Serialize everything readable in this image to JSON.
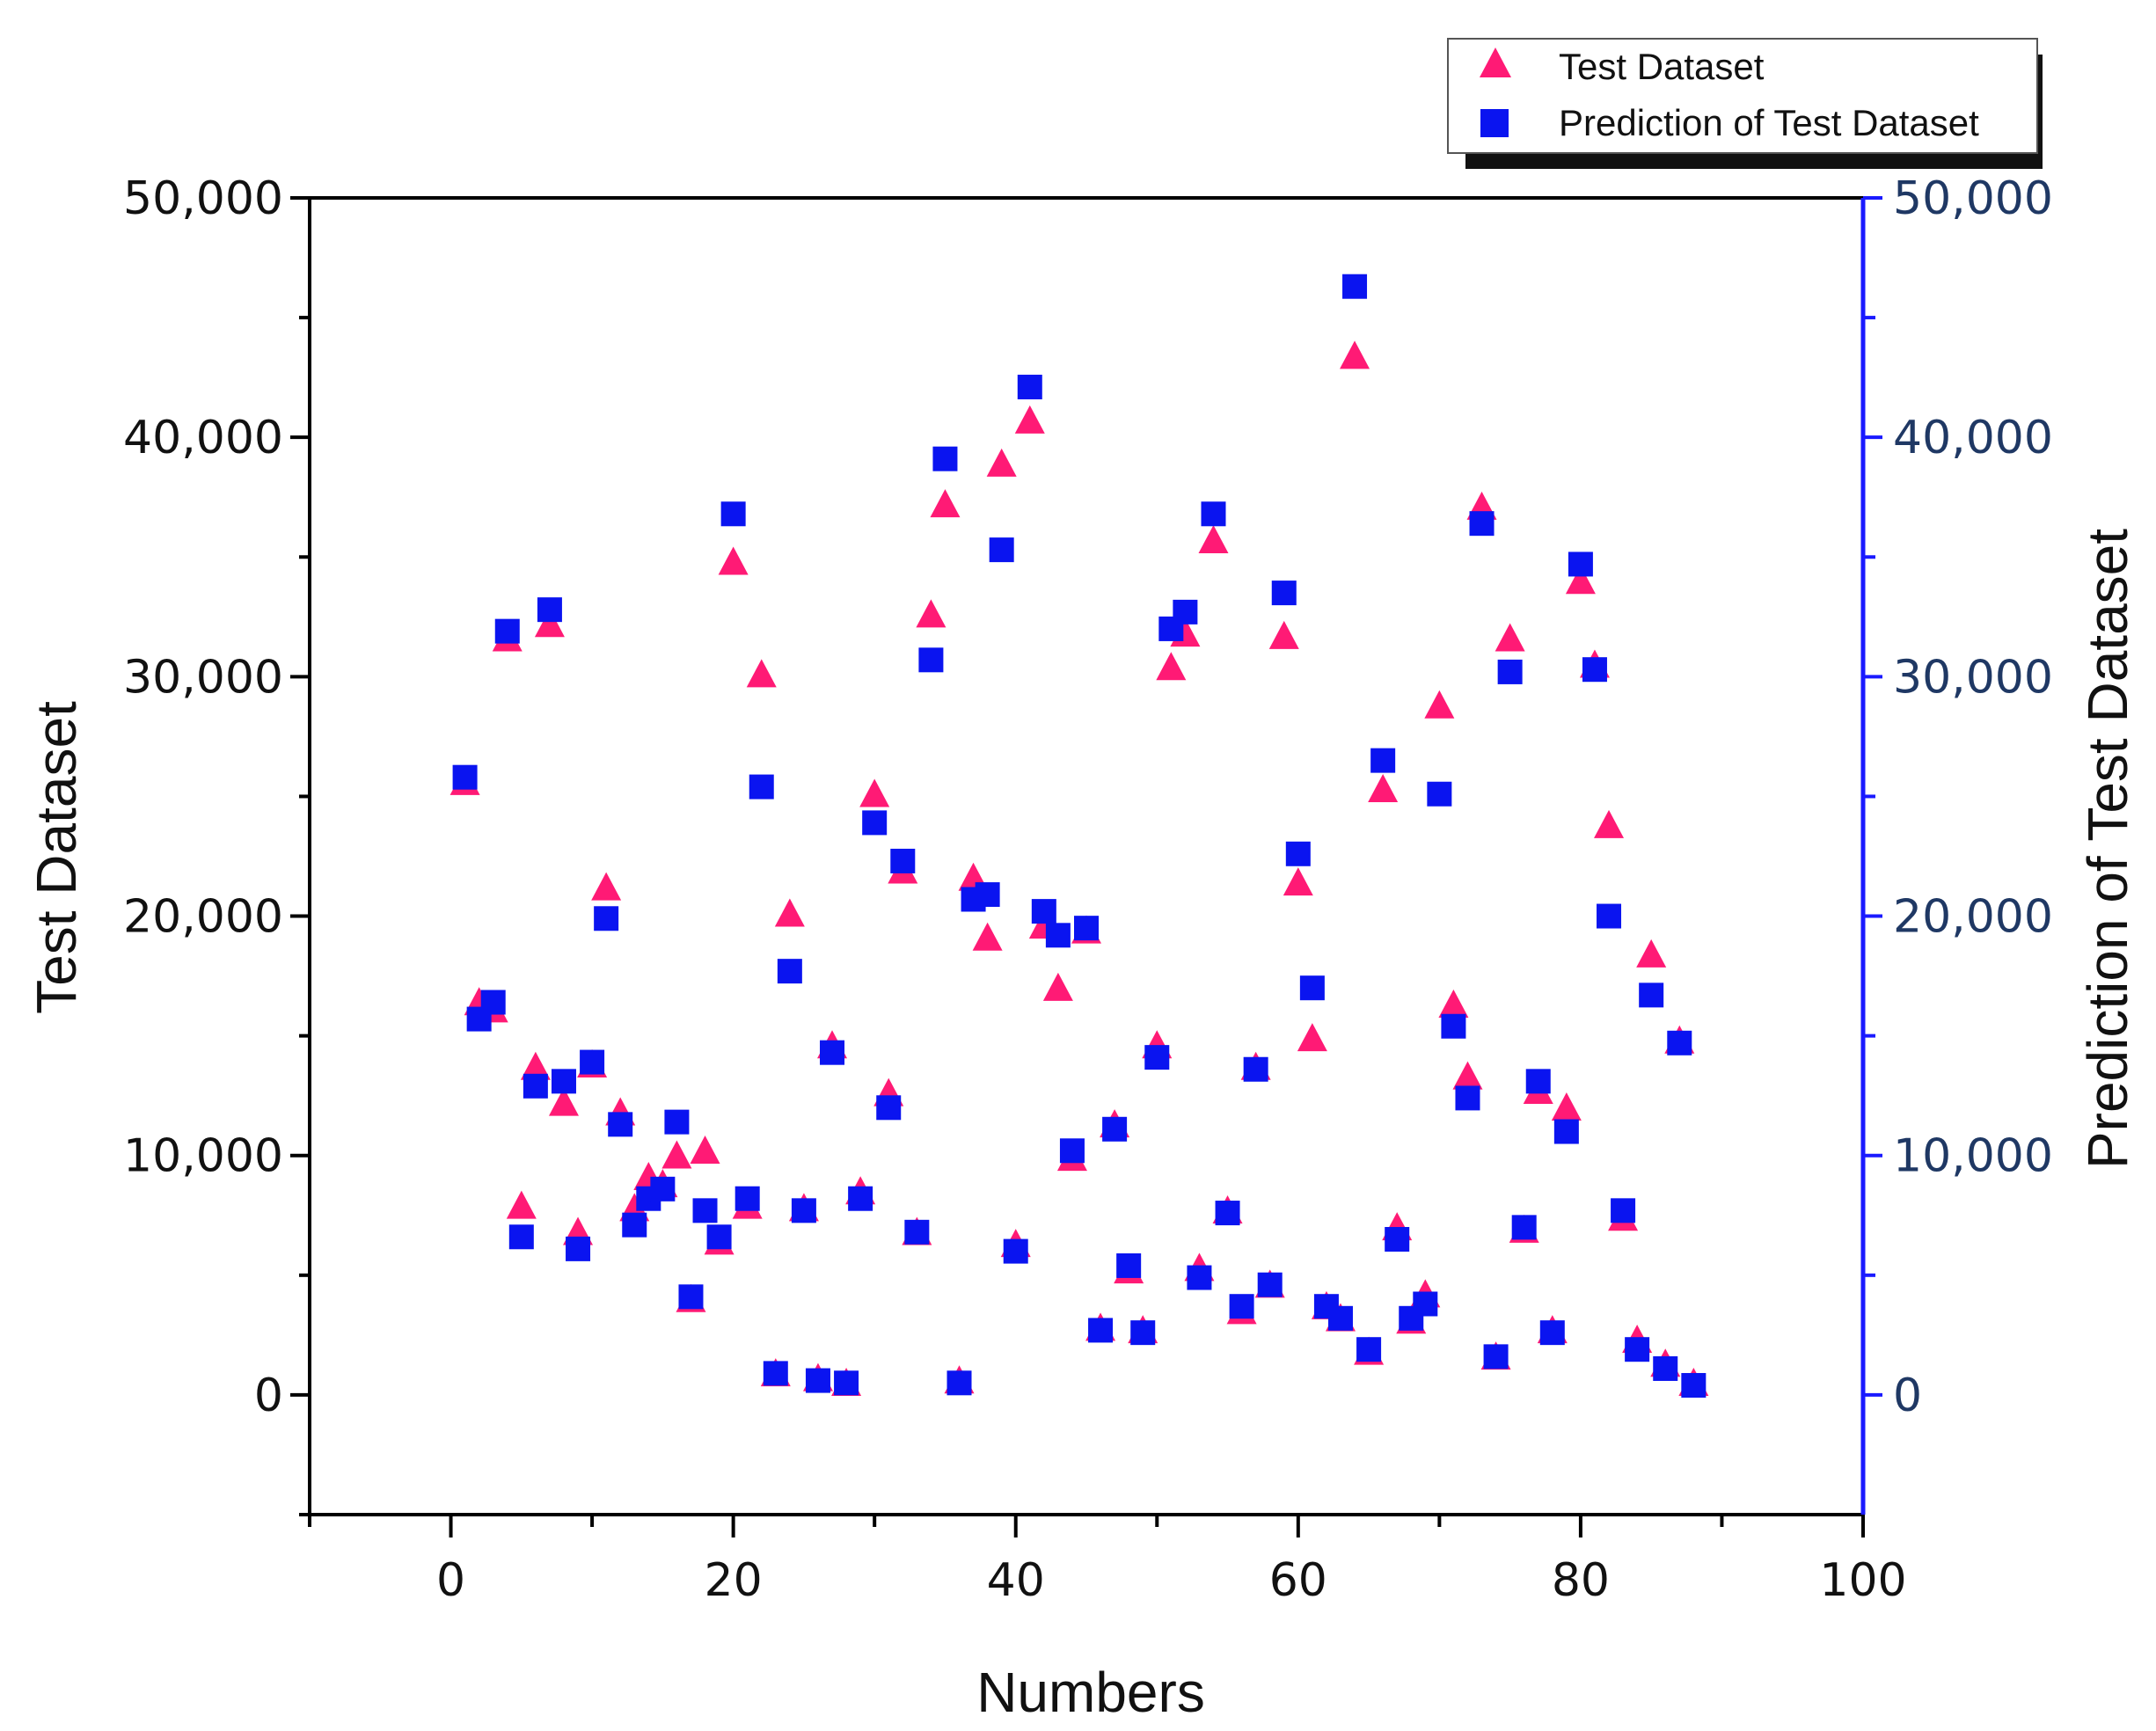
{
  "chart_data": {
    "type": "scatter",
    "title": "",
    "xlabel": "Numbers",
    "ylabel": "Test Dataset",
    "ylabel_right": "Prediction of Test Dataset",
    "xlim": [
      -10,
      100
    ],
    "ylim": [
      -5000,
      50000
    ],
    "ylim_right": [
      -5000,
      50000
    ],
    "x_ticks": [
      0,
      20,
      40,
      60,
      80,
      100
    ],
    "x_tick_labels": [
      "0",
      "20",
      "40",
      "60",
      "80",
      "100"
    ],
    "y_ticks": [
      0,
      10000,
      20000,
      30000,
      40000,
      50000
    ],
    "y_tick_labels": [
      "0",
      "10,000",
      "20,000",
      "30,000",
      "40,000",
      "50,000"
    ],
    "y_right_tick_labels": [
      "0",
      "10,000",
      "20,000",
      "30,000",
      "40,000",
      "50,000"
    ],
    "grid": false,
    "legend": "top-right",
    "colors": {
      "test": "#ff1a75",
      "prediction": "#0a14f0",
      "right_axis": "#1a1aff"
    },
    "series": [
      {
        "name": "Test Dataset",
        "marker": "triangle",
        "points": [
          [
            1,
            25500
          ],
          [
            2,
            16300
          ],
          [
            3,
            16000
          ],
          [
            4,
            31500
          ],
          [
            5,
            7800
          ],
          [
            6,
            13600
          ],
          [
            7,
            32100
          ],
          [
            8,
            12100
          ],
          [
            9,
            6700
          ],
          [
            10,
            13700
          ],
          [
            11,
            21100
          ],
          [
            12,
            11700
          ],
          [
            13,
            7700
          ],
          [
            14,
            9000
          ],
          [
            15,
            8700
          ],
          [
            16,
            9900
          ],
          [
            17,
            3900
          ],
          [
            18,
            10100
          ],
          [
            19,
            6300
          ],
          [
            20,
            34700
          ],
          [
            21,
            7800
          ],
          [
            22,
            30000
          ],
          [
            23,
            800
          ],
          [
            24,
            20000
          ],
          [
            25,
            7700
          ],
          [
            26,
            600
          ],
          [
            27,
            14500
          ],
          [
            28,
            400
          ],
          [
            29,
            8400
          ],
          [
            30,
            25000
          ],
          [
            31,
            12500
          ],
          [
            32,
            21800
          ],
          [
            33,
            6700
          ],
          [
            34,
            32500
          ],
          [
            35,
            37100
          ],
          [
            36,
            500
          ],
          [
            37,
            21500
          ],
          [
            38,
            19000
          ],
          [
            39,
            38800
          ],
          [
            40,
            6200
          ],
          [
            41,
            40600
          ],
          [
            42,
            19500
          ],
          [
            43,
            16900
          ],
          [
            44,
            9800
          ],
          [
            45,
            19300
          ],
          [
            46,
            2700
          ],
          [
            47,
            11200
          ],
          [
            48,
            5100
          ],
          [
            49,
            2600
          ],
          [
            50,
            14500
          ],
          [
            51,
            30300
          ],
          [
            52,
            31700
          ],
          [
            53,
            5200
          ],
          [
            54,
            35600
          ],
          [
            55,
            7600
          ],
          [
            56,
            3400
          ],
          [
            57,
            13600
          ],
          [
            58,
            4500
          ],
          [
            59,
            31600
          ],
          [
            60,
            21300
          ],
          [
            61,
            14800
          ],
          [
            62,
            3600
          ],
          [
            63,
            3100
          ],
          [
            64,
            43300
          ],
          [
            65,
            1700
          ],
          [
            66,
            25200
          ],
          [
            67,
            6900
          ],
          [
            68,
            3000
          ],
          [
            69,
            4100
          ],
          [
            70,
            28700
          ],
          [
            71,
            16200
          ],
          [
            72,
            13200
          ],
          [
            73,
            37000
          ],
          [
            74,
            1500
          ],
          [
            75,
            31500
          ],
          [
            76,
            6800
          ],
          [
            77,
            12600
          ],
          [
            78,
            2600
          ],
          [
            79,
            11900
          ],
          [
            80,
            33900
          ],
          [
            81,
            30400
          ],
          [
            82,
            23700
          ],
          [
            83,
            7300
          ],
          [
            84,
            2200
          ],
          [
            85,
            18300
          ],
          [
            86,
            1200
          ],
          [
            87,
            14700
          ],
          [
            88,
            400
          ]
        ]
      },
      {
        "name": "Prediction of Test Dataset",
        "marker": "square",
        "points": [
          [
            1,
            25800
          ],
          [
            2,
            15700
          ],
          [
            3,
            16400
          ],
          [
            4,
            31900
          ],
          [
            5,
            6600
          ],
          [
            6,
            12900
          ],
          [
            7,
            32800
          ],
          [
            8,
            13100
          ],
          [
            9,
            6100
          ],
          [
            10,
            13900
          ],
          [
            11,
            19900
          ],
          [
            12,
            11300
          ],
          [
            13,
            7100
          ],
          [
            14,
            8200
          ],
          [
            15,
            8600
          ],
          [
            16,
            11400
          ],
          [
            17,
            4100
          ],
          [
            18,
            7700
          ],
          [
            19,
            6600
          ],
          [
            20,
            36800
          ],
          [
            21,
            8200
          ],
          [
            22,
            25400
          ],
          [
            23,
            900
          ],
          [
            24,
            17700
          ],
          [
            25,
            7700
          ],
          [
            26,
            600
          ],
          [
            27,
            14300
          ],
          [
            28,
            500
          ],
          [
            29,
            8200
          ],
          [
            30,
            23900
          ],
          [
            31,
            12000
          ],
          [
            32,
            22300
          ],
          [
            33,
            6800
          ],
          [
            34,
            30700
          ],
          [
            35,
            39100
          ],
          [
            36,
            500
          ],
          [
            37,
            20700
          ],
          [
            38,
            20900
          ],
          [
            39,
            35300
          ],
          [
            40,
            6000
          ],
          [
            41,
            42100
          ],
          [
            42,
            20200
          ],
          [
            43,
            19200
          ],
          [
            44,
            10200
          ],
          [
            45,
            19500
          ],
          [
            46,
            2700
          ],
          [
            47,
            11100
          ],
          [
            48,
            5400
          ],
          [
            49,
            2600
          ],
          [
            50,
            14100
          ],
          [
            51,
            32000
          ],
          [
            52,
            32700
          ],
          [
            53,
            4900
          ],
          [
            54,
            36800
          ],
          [
            55,
            7600
          ],
          [
            56,
            3700
          ],
          [
            57,
            13600
          ],
          [
            58,
            4600
          ],
          [
            59,
            33500
          ],
          [
            60,
            22600
          ],
          [
            61,
            17000
          ],
          [
            62,
            3700
          ],
          [
            63,
            3200
          ],
          [
            64,
            46300
          ],
          [
            65,
            1900
          ],
          [
            66,
            26500
          ],
          [
            67,
            6500
          ],
          [
            68,
            3200
          ],
          [
            69,
            3800
          ],
          [
            70,
            25100
          ],
          [
            71,
            15400
          ],
          [
            72,
            12400
          ],
          [
            73,
            36400
          ],
          [
            74,
            1600
          ],
          [
            75,
            30200
          ],
          [
            76,
            7000
          ],
          [
            77,
            13100
          ],
          [
            78,
            2600
          ],
          [
            79,
            11000
          ],
          [
            80,
            34700
          ],
          [
            81,
            30300
          ],
          [
            82,
            20000
          ],
          [
            83,
            7700
          ],
          [
            84,
            1900
          ],
          [
            85,
            16700
          ],
          [
            86,
            1100
          ],
          [
            87,
            14700
          ],
          [
            88,
            400
          ]
        ]
      }
    ]
  }
}
